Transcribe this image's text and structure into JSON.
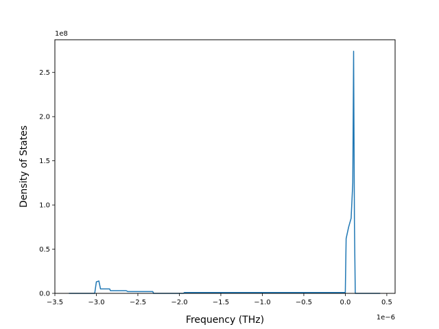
{
  "chart_data": {
    "type": "line",
    "title": "",
    "xlabel": "Frequency (THz)",
    "ylabel": "Density of States",
    "x_offset_label": "1e−6",
    "y_offset_label": "1e8",
    "xlim": [
      -3.5,
      0.6
    ],
    "ylim": [
      0,
      2.87
    ],
    "x_ticks": [
      -3.5,
      -3.0,
      -2.5,
      -2.0,
      -1.5,
      -1.0,
      -0.5,
      0.0,
      0.5
    ],
    "x_tick_labels": [
      "−3.5",
      "−3.0",
      "−2.5",
      "−2.0",
      "−1.5",
      "−1.0",
      "−0.5",
      "0.0",
      "0.5"
    ],
    "y_ticks": [
      0.0,
      0.5,
      1.0,
      1.5,
      2.0,
      2.5
    ],
    "y_tick_labels": [
      "0.0",
      "0.5",
      "1.0",
      "1.5",
      "2.0",
      "2.5"
    ],
    "grid": false,
    "legend": "none",
    "series": [
      {
        "color": "#1f77b4",
        "x": [
          -3.33,
          -3.02,
          -3.0,
          -2.97,
          -2.95,
          -2.84,
          -2.83,
          -2.64,
          -2.62,
          -2.32,
          -2.31,
          -1.95,
          -1.94,
          0.0,
          0.01,
          0.04,
          0.07,
          0.09,
          0.1,
          0.11,
          0.12,
          0.42
        ],
        "y": [
          0.0,
          0.0,
          0.13,
          0.14,
          0.05,
          0.05,
          0.03,
          0.03,
          0.02,
          0.02,
          0.0,
          0.0,
          0.01,
          0.01,
          0.62,
          0.75,
          0.85,
          1.25,
          2.74,
          0.8,
          0.0,
          0.0
        ]
      }
    ]
  }
}
